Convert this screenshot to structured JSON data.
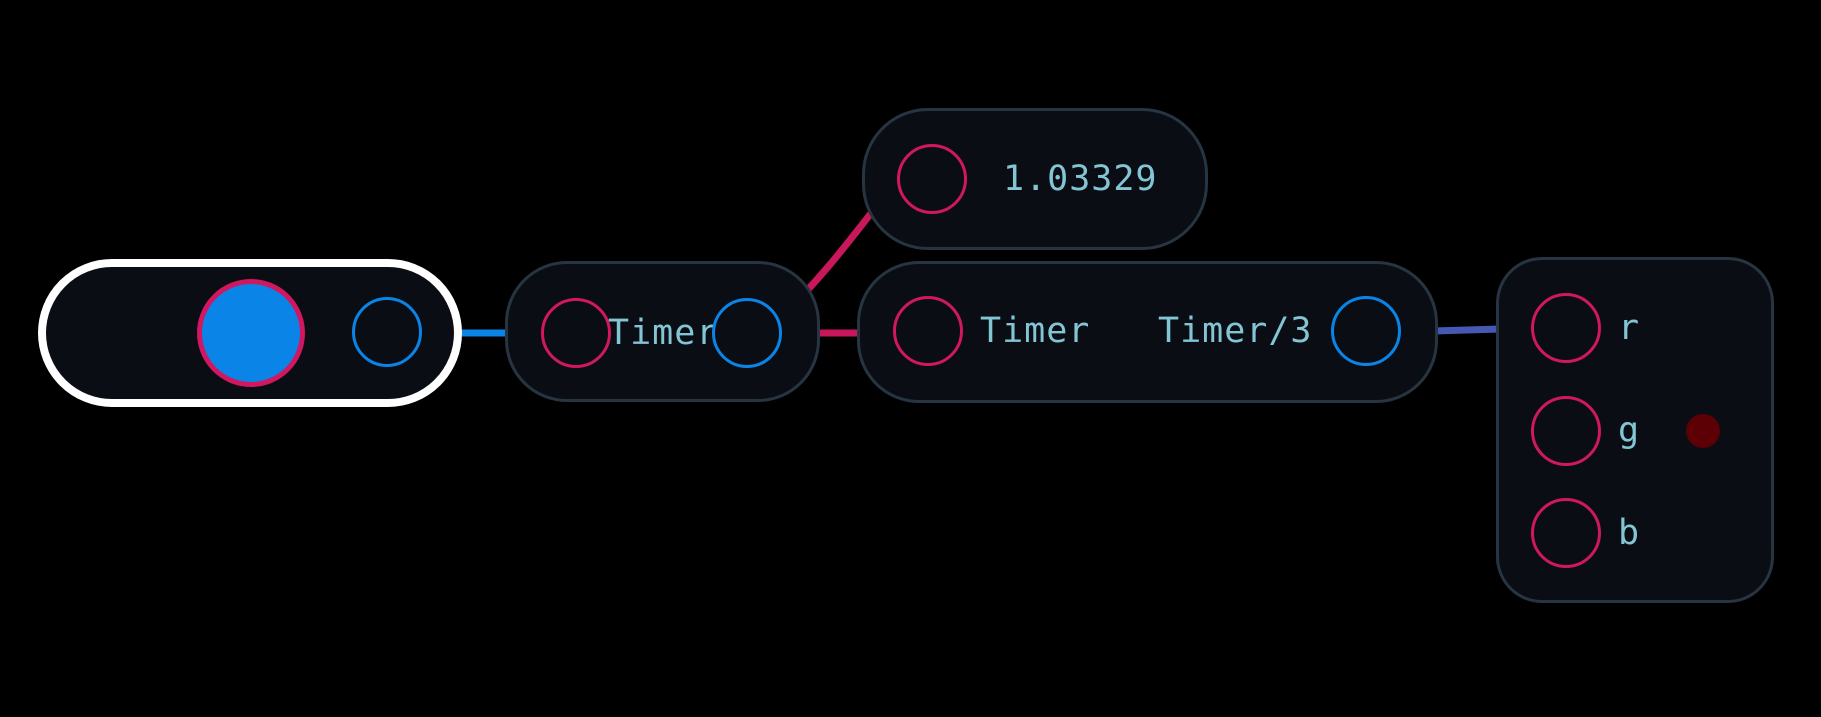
{
  "colors": {
    "background": "#000000",
    "node_fill": "#0a0e14",
    "node_border": "#273441",
    "selected_border": "#ffffff",
    "input_port": "#d0175f",
    "output_port": "#0a84e6",
    "label_text": "#83c5d4",
    "indicator": "#5c0005"
  },
  "nodes": {
    "timer_node": {
      "label": "Timer"
    },
    "value_display": {
      "value": "1.03329"
    },
    "divide_node": {
      "input_label": "Timer",
      "output_label": "Timer/3"
    },
    "color_node": {
      "inputs": [
        "r",
        "g",
        "b"
      ]
    }
  }
}
